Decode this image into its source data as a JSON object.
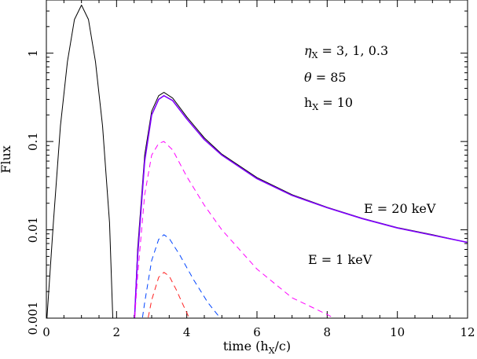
{
  "chart_data": {
    "type": "line",
    "xlabel_main": "time (h",
    "xlabel_sub": "X",
    "xlabel_end": "/c)",
    "ylabel": "Flux",
    "xlim": [
      0,
      12
    ],
    "ylim": [
      0.001,
      4
    ],
    "yscale": "log",
    "x_ticks": [
      "0",
      "2",
      "4",
      "6",
      "8",
      "10",
      "12"
    ],
    "y_ticks": [
      "0.001",
      "0.01",
      "0.1",
      "1"
    ],
    "annotations": {
      "eta_sym": "η",
      "eta_sub": "X",
      "eta_val": " = 3, 1, 0.3",
      "theta_sym": "θ",
      "theta_val": " = 85",
      "h_sym": "h",
      "h_sub": "X",
      "h_val": "  = 10",
      "e_high": "E = 20 keV",
      "e_low": "E = 1 keV"
    },
    "series": [
      {
        "color": "#000000",
        "dash": "solid",
        "x": [
          0.0,
          0.2,
          0.4,
          0.6,
          0.8,
          1.0,
          1.2,
          1.4,
          1.6,
          1.8,
          1.9
        ],
        "y": [
          0.0008,
          0.012,
          0.15,
          0.8,
          2.4,
          3.5,
          2.4,
          0.8,
          0.15,
          0.012,
          0.0008
        ]
      },
      {
        "color": "#000000",
        "dash": "solid",
        "x": [
          2.5,
          2.6,
          2.8,
          3.0,
          3.2,
          3.35,
          3.6,
          4.0,
          4.5,
          5.0,
          6.0,
          7.0,
          8.0,
          9.0,
          10.0,
          11.0,
          12.0
        ],
        "y": [
          0.0008,
          0.006,
          0.07,
          0.22,
          0.33,
          0.36,
          0.31,
          0.19,
          0.11,
          0.072,
          0.039,
          0.025,
          0.018,
          0.0135,
          0.0106,
          0.0088,
          0.0072
        ]
      },
      {
        "color": "#8000ff",
        "dash": "solid",
        "x": [
          2.5,
          2.6,
          2.8,
          3.0,
          3.2,
          3.35,
          3.6,
          4.0,
          4.5,
          5.0,
          6.0,
          7.0,
          8.0,
          9.0,
          10.0,
          11.0,
          12.0
        ],
        "y": [
          0.0008,
          0.005,
          0.06,
          0.2,
          0.3,
          0.33,
          0.29,
          0.18,
          0.105,
          0.07,
          0.038,
          0.0245,
          0.0178,
          0.0134,
          0.0105,
          0.0087,
          0.0072
        ]
      },
      {
        "color": "#ff00ff",
        "dash": "dashed",
        "x": [
          2.5,
          2.6,
          2.8,
          3.0,
          3.2,
          3.35,
          3.6,
          4.0,
          4.5,
          5.0,
          6.0,
          7.0,
          8.0,
          8.4
        ],
        "y": [
          0.0008,
          0.003,
          0.025,
          0.07,
          0.095,
          0.1,
          0.08,
          0.04,
          0.019,
          0.01,
          0.0036,
          0.0017,
          0.0011,
          0.0009
        ]
      },
      {
        "color": "#0044ff",
        "dash": "dashed",
        "x": [
          2.7,
          2.8,
          3.0,
          3.2,
          3.35,
          3.5,
          3.8,
          4.2,
          4.6,
          5.0,
          5.1
        ],
        "y": [
          0.0008,
          0.0015,
          0.0045,
          0.0078,
          0.0088,
          0.008,
          0.0052,
          0.0027,
          0.0015,
          0.00095,
          0.00085
        ]
      },
      {
        "color": "#ff2020",
        "dash": "dashed",
        "x": [
          2.85,
          3.0,
          3.2,
          3.35,
          3.5,
          3.7,
          3.9,
          4.1,
          4.2
        ],
        "y": [
          0.0008,
          0.0016,
          0.0029,
          0.0033,
          0.003,
          0.0021,
          0.0014,
          0.00095,
          0.00085
        ]
      }
    ]
  }
}
